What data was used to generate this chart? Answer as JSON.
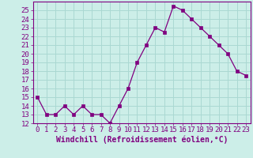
{
  "x": [
    0,
    1,
    2,
    3,
    4,
    5,
    6,
    7,
    8,
    9,
    10,
    11,
    12,
    13,
    14,
    15,
    16,
    17,
    18,
    19,
    20,
    21,
    22,
    23
  ],
  "y": [
    15,
    13,
    13,
    14,
    13,
    14,
    13,
    13,
    12,
    14,
    16,
    19,
    21,
    23,
    22.5,
    25.5,
    25,
    24,
    23,
    22,
    21,
    20,
    18,
    17.5
  ],
  "line_color": "#800080",
  "marker": "s",
  "marker_size": 2.5,
  "bg_color": "#cceee8",
  "grid_color": "#aad8d2",
  "axis_color": "#800080",
  "xlabel": "Windchill (Refroidissement éolien,°C)",
  "ylim": [
    12,
    26
  ],
  "xlim": [
    -0.5,
    23.5
  ],
  "yticks": [
    12,
    13,
    14,
    15,
    16,
    17,
    18,
    19,
    20,
    21,
    22,
    23,
    24,
    25
  ],
  "xticks": [
    0,
    1,
    2,
    3,
    4,
    5,
    6,
    7,
    8,
    9,
    10,
    11,
    12,
    13,
    14,
    15,
    16,
    17,
    18,
    19,
    20,
    21,
    22,
    23
  ],
  "tick_fontsize": 6.5,
  "label_fontsize": 7
}
